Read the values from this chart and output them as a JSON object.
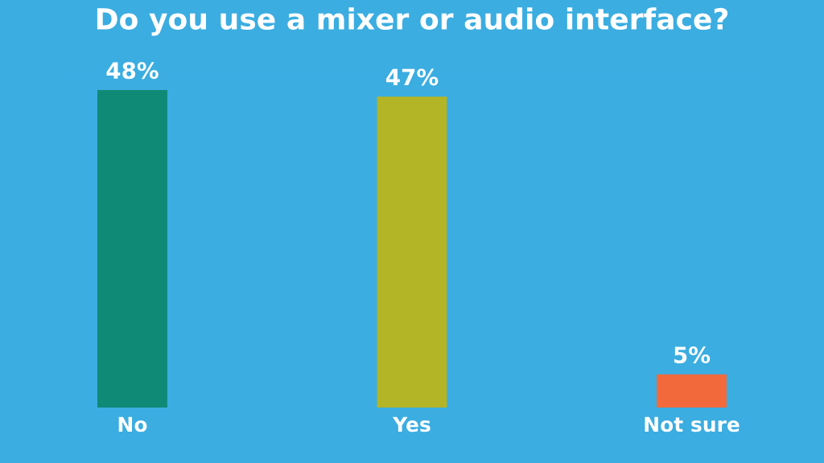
{
  "chart_data": {
    "type": "bar",
    "title": "Do you use a mixer or audio interface?",
    "categories": [
      "No",
      "Yes",
      "Not sure"
    ],
    "values": [
      48,
      47,
      5
    ],
    "colors": [
      "#0f8a76",
      "#b3b526",
      "#f26a3c"
    ],
    "value_labels": [
      "48%",
      "47%",
      "5%"
    ],
    "grid": false,
    "legend": false,
    "tick_labels": "x"
  }
}
